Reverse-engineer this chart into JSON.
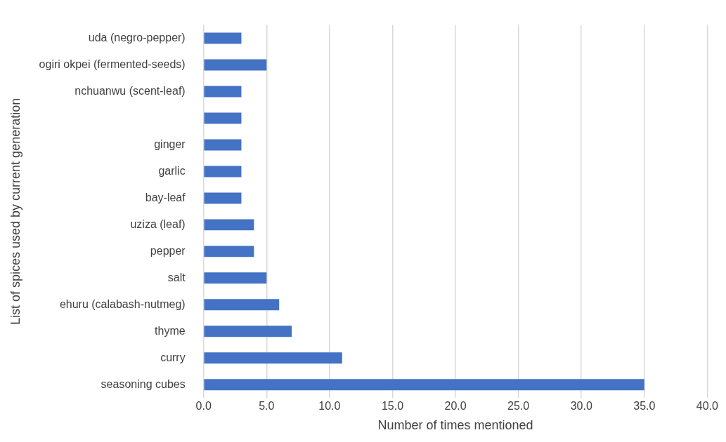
{
  "chart_data": {
    "type": "bar",
    "orientation": "horizontal",
    "xlabel": "Number of times mentioned",
    "ylabel": "List of spices used by current generation",
    "categories": [
      "uda (negro-pepper)",
      "ogiri okpei (fermented-seeds)",
      "nchuanwu (scent-leaf)",
      null,
      "ginger",
      "garlic",
      "bay-leaf",
      "uziza (leaf)",
      "pepper",
      "salt",
      "ehuru (calabash-nutmeg)",
      "thyme",
      "curry",
      "seasoning cubes"
    ],
    "values": [
      3,
      5,
      3,
      3,
      3,
      3,
      3,
      4,
      4,
      5,
      6,
      7,
      11,
      35
    ],
    "color": "#4472c4",
    "xlim": [
      0,
      40
    ],
    "xticks": [
      {
        "value": 0,
        "label": "0.0"
      },
      {
        "value": 5,
        "label": "5.0"
      },
      {
        "value": 10,
        "label": "10.0"
      },
      {
        "value": 15,
        "label": "15.0"
      },
      {
        "value": 20,
        "label": "20.0"
      },
      {
        "value": 25,
        "label": "25.0"
      },
      {
        "value": 30,
        "label": "30.0"
      },
      {
        "value": 35,
        "label": "35.0"
      },
      {
        "value": 40,
        "label": "40.0"
      }
    ],
    "grid": "x",
    "legend": false
  }
}
